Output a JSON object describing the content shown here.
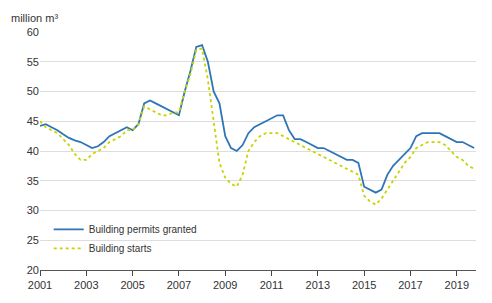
{
  "chart_data": {
    "type": "line",
    "ylabel": "million m³",
    "x": [
      2001.0,
      2001.25,
      2001.5,
      2001.75,
      2002.0,
      2002.25,
      2002.5,
      2002.75,
      2003.0,
      2003.25,
      2003.5,
      2003.75,
      2004.0,
      2004.25,
      2004.5,
      2004.75,
      2005.0,
      2005.25,
      2005.5,
      2005.75,
      2006.0,
      2006.25,
      2006.5,
      2006.75,
      2007.0,
      2007.25,
      2007.5,
      2007.75,
      2008.0,
      2008.25,
      2008.5,
      2008.75,
      2009.0,
      2009.25,
      2009.5,
      2009.75,
      2010.0,
      2010.25,
      2010.5,
      2010.75,
      2011.0,
      2011.25,
      2011.5,
      2011.75,
      2012.0,
      2012.25,
      2012.5,
      2012.75,
      2013.0,
      2013.25,
      2013.5,
      2013.75,
      2014.0,
      2014.25,
      2014.5,
      2014.75,
      2015.0,
      2015.25,
      2015.5,
      2015.75,
      2016.0,
      2016.25,
      2016.5,
      2016.75,
      2017.0,
      2017.25,
      2017.5,
      2017.75,
      2018.0,
      2018.25,
      2018.5,
      2018.75,
      2019.0,
      2019.25,
      2019.5,
      2019.75
    ],
    "series": [
      {
        "name": "Building permits granted",
        "color": "#2E75B6",
        "line_style": "solid",
        "values": [
          44.2,
          44.5,
          44.0,
          43.5,
          42.8,
          42.2,
          41.8,
          41.5,
          41.0,
          40.5,
          40.8,
          41.5,
          42.5,
          43.0,
          43.5,
          44.0,
          43.5,
          44.5,
          48.0,
          48.5,
          48.0,
          47.5,
          47.0,
          46.5,
          46.0,
          50.0,
          53.5,
          57.5,
          57.8,
          55.0,
          50.0,
          48.0,
          42.5,
          40.5,
          40.0,
          41.0,
          43.0,
          44.0,
          44.5,
          45.0,
          45.5,
          46.0,
          46.0,
          43.5,
          42.0,
          42.0,
          41.5,
          41.0,
          40.5,
          40.5,
          40.0,
          39.5,
          39.0,
          38.5,
          38.5,
          38.0,
          34.0,
          33.5,
          33.0,
          33.5,
          36.0,
          37.5,
          38.5,
          39.5,
          40.5,
          42.5,
          43.0,
          43.0,
          43.0,
          43.0,
          42.5,
          42.0,
          41.5,
          41.5,
          41.0,
          40.5
        ]
      },
      {
        "name": "Building starts",
        "color": "#C8D400",
        "line_style": "dotted",
        "values": [
          45.0,
          44.0,
          43.5,
          43.0,
          42.0,
          41.0,
          39.5,
          38.5,
          38.5,
          39.5,
          40.0,
          40.5,
          41.5,
          42.0,
          42.5,
          43.5,
          43.5,
          44.5,
          47.5,
          47.0,
          46.5,
          46.0,
          46.0,
          46.5,
          46.5,
          50.0,
          53.0,
          57.0,
          57.2,
          52.0,
          45.0,
          38.0,
          35.5,
          34.5,
          34.0,
          36.0,
          40.0,
          41.5,
          42.5,
          43.0,
          43.0,
          43.0,
          42.5,
          42.0,
          41.5,
          41.0,
          40.5,
          40.0,
          39.5,
          39.0,
          38.5,
          38.0,
          37.5,
          37.0,
          36.5,
          36.0,
          32.5,
          31.5,
          31.0,
          32.0,
          33.5,
          35.0,
          36.5,
          38.0,
          39.0,
          40.5,
          41.0,
          41.5,
          41.5,
          41.5,
          41.0,
          40.0,
          39.0,
          38.5,
          37.5,
          37.0
        ]
      }
    ],
    "xlim": [
      2001.0,
      2019.83
    ],
    "xticks": [
      2001,
      2003,
      2005,
      2007,
      2009,
      2011,
      2013,
      2015,
      2017,
      2019
    ],
    "ylim": [
      20,
      60
    ],
    "yticks": [
      20,
      25,
      30,
      35,
      40,
      45,
      50,
      55,
      60
    ],
    "grid": "y",
    "legend": "lower left"
  }
}
